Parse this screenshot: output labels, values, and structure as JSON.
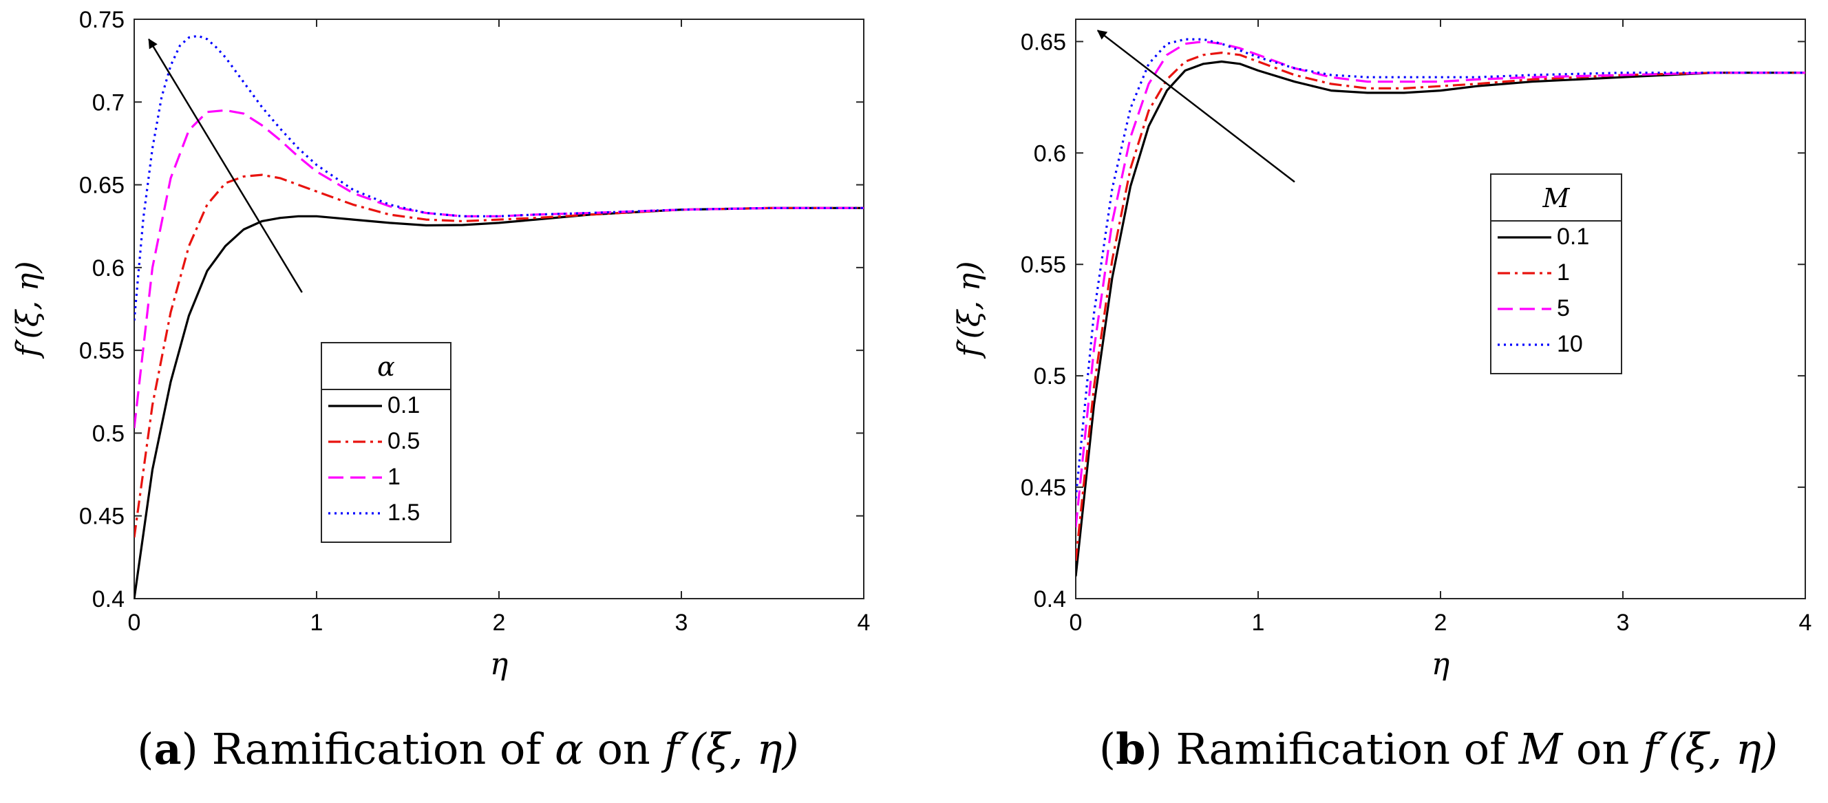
{
  "chart_data": [
    {
      "id": "a",
      "type": "line",
      "xlabel": "η",
      "ylabel": "f′(ξ, η)",
      "xlim": [
        0,
        4
      ],
      "ylim": [
        0.4,
        0.75
      ],
      "xticks": [
        "0",
        "1",
        "2",
        "3",
        "4"
      ],
      "yticks": [
        "0.4",
        "0.45",
        "0.5",
        "0.55",
        "0.6",
        "0.65",
        "0.7",
        "0.75"
      ],
      "legend": {
        "title": "α",
        "location": "center"
      },
      "arrow": {
        "from": [
          0.92,
          0.585
        ],
        "to": [
          0.08,
          0.738
        ]
      },
      "caption": {
        "label": "a",
        "text": "Ramification of",
        "symbol": "α",
        "joiner": "on",
        "expr": "f′(ξ, η)"
      },
      "series": [
        {
          "name": "0.1",
          "color": "#000000",
          "dash": "solid",
          "x": [
            0,
            0.1,
            0.2,
            0.3,
            0.4,
            0.5,
            0.6,
            0.7,
            0.8,
            0.9,
            1.0,
            1.1,
            1.2,
            1.4,
            1.6,
            1.8,
            2.0,
            2.2,
            2.5,
            3.0,
            3.5,
            4.0
          ],
          "y": [
            0.4,
            0.478,
            0.531,
            0.571,
            0.598,
            0.613,
            0.623,
            0.628,
            0.63,
            0.631,
            0.631,
            0.63,
            0.629,
            0.627,
            0.6255,
            0.6257,
            0.627,
            0.629,
            0.632,
            0.635,
            0.636,
            0.636
          ]
        },
        {
          "name": "0.5",
          "color": "#e8130f",
          "dash": "dashdot",
          "x": [
            0,
            0.1,
            0.2,
            0.3,
            0.4,
            0.5,
            0.6,
            0.7,
            0.8,
            0.9,
            1.0,
            1.2,
            1.4,
            1.6,
            1.8,
            2.0,
            2.2,
            2.5,
            3.0,
            3.5,
            4.0
          ],
          "y": [
            0.437,
            0.517,
            0.573,
            0.613,
            0.638,
            0.651,
            0.655,
            0.656,
            0.654,
            0.65,
            0.646,
            0.638,
            0.632,
            0.629,
            0.628,
            0.629,
            0.63,
            0.632,
            0.635,
            0.636,
            0.636
          ]
        },
        {
          "name": "1",
          "color": "#ff00ff",
          "dash": "dashed",
          "x": [
            0,
            0.1,
            0.2,
            0.3,
            0.4,
            0.5,
            0.6,
            0.7,
            0.8,
            0.9,
            1.0,
            1.2,
            1.4,
            1.6,
            1.8,
            2.0,
            2.2,
            2.5,
            3.0,
            3.5,
            4.0
          ],
          "y": [
            0.503,
            0.6,
            0.654,
            0.683,
            0.694,
            0.695,
            0.693,
            0.686,
            0.677,
            0.667,
            0.658,
            0.645,
            0.637,
            0.633,
            0.631,
            0.631,
            0.632,
            0.633,
            0.635,
            0.636,
            0.636
          ]
        },
        {
          "name": "1.5",
          "color": "#0000ff",
          "dash": "dotted",
          "x": [
            0,
            0.05,
            0.1,
            0.15,
            0.2,
            0.25,
            0.3,
            0.35,
            0.4,
            0.45,
            0.5,
            0.6,
            0.7,
            0.8,
            0.9,
            1.0,
            1.2,
            1.4,
            1.6,
            1.8,
            2.0,
            2.2,
            2.5,
            3.0,
            3.5,
            4.0
          ],
          "y": [
            0.568,
            0.63,
            0.672,
            0.703,
            0.722,
            0.734,
            0.739,
            0.74,
            0.738,
            0.733,
            0.727,
            0.712,
            0.697,
            0.684,
            0.672,
            0.662,
            0.647,
            0.638,
            0.633,
            0.631,
            0.631,
            0.632,
            0.633,
            0.635,
            0.636,
            0.636
          ]
        }
      ]
    },
    {
      "id": "b",
      "type": "line",
      "xlabel": "η",
      "ylabel": "f′(ξ, η)",
      "xlim": [
        0,
        4
      ],
      "ylim": [
        0.4,
        0.66
      ],
      "xticks": [
        "0",
        "1",
        "2",
        "3",
        "4"
      ],
      "yticks": [
        "0.4",
        "0.45",
        "0.5",
        "0.55",
        "0.6",
        "0.65"
      ],
      "legend": {
        "title": "M",
        "location": "right"
      },
      "arrow": {
        "from": [
          1.2,
          0.587
        ],
        "to": [
          0.12,
          0.655
        ]
      },
      "caption": {
        "label": "b",
        "text": "Ramification of",
        "symbol": "M",
        "joiner": "on",
        "expr": "f′(ξ, η)"
      },
      "series": [
        {
          "name": "0.1",
          "color": "#000000",
          "dash": "solid",
          "x": [
            0,
            0.1,
            0.2,
            0.3,
            0.4,
            0.5,
            0.6,
            0.7,
            0.8,
            0.9,
            1.0,
            1.2,
            1.4,
            1.6,
            1.8,
            2.0,
            2.2,
            2.5,
            3.0,
            3.5,
            4.0
          ],
          "y": [
            0.41,
            0.487,
            0.544,
            0.585,
            0.612,
            0.628,
            0.637,
            0.64,
            0.641,
            0.64,
            0.637,
            0.632,
            0.628,
            0.627,
            0.627,
            0.628,
            0.63,
            0.632,
            0.634,
            0.636,
            0.636
          ]
        },
        {
          "name": "1",
          "color": "#e8130f",
          "dash": "dashdot",
          "x": [
            0,
            0.1,
            0.2,
            0.3,
            0.4,
            0.5,
            0.6,
            0.7,
            0.8,
            0.9,
            1.0,
            1.2,
            1.4,
            1.6,
            1.8,
            2.0,
            2.2,
            2.5,
            3.0,
            3.5,
            4.0
          ],
          "y": [
            0.417,
            0.495,
            0.552,
            0.593,
            0.619,
            0.633,
            0.641,
            0.644,
            0.645,
            0.644,
            0.641,
            0.635,
            0.631,
            0.629,
            0.629,
            0.63,
            0.631,
            0.633,
            0.635,
            0.636,
            0.636
          ]
        },
        {
          "name": "5",
          "color": "#ff00ff",
          "dash": "dashed",
          "x": [
            0,
            0.1,
            0.2,
            0.3,
            0.4,
            0.5,
            0.6,
            0.7,
            0.8,
            0.9,
            1.0,
            1.2,
            1.4,
            1.6,
            1.8,
            2.0,
            2.2,
            2.5,
            3.0,
            3.5,
            4.0
          ],
          "y": [
            0.432,
            0.512,
            0.569,
            0.607,
            0.631,
            0.644,
            0.649,
            0.65,
            0.649,
            0.647,
            0.644,
            0.638,
            0.634,
            0.632,
            0.632,
            0.632,
            0.633,
            0.634,
            0.635,
            0.636,
            0.636
          ]
        },
        {
          "name": "10",
          "color": "#0000ff",
          "dash": "dotted",
          "x": [
            0,
            0.1,
            0.2,
            0.3,
            0.4,
            0.5,
            0.6,
            0.7,
            0.8,
            0.9,
            1.0,
            1.2,
            1.4,
            1.6,
            1.8,
            2.0,
            2.2,
            2.5,
            3.0,
            3.5,
            4.0
          ],
          "y": [
            0.445,
            0.528,
            0.584,
            0.62,
            0.64,
            0.649,
            0.651,
            0.651,
            0.649,
            0.646,
            0.643,
            0.638,
            0.635,
            0.634,
            0.634,
            0.634,
            0.634,
            0.635,
            0.636,
            0.636,
            0.636
          ]
        }
      ]
    }
  ]
}
